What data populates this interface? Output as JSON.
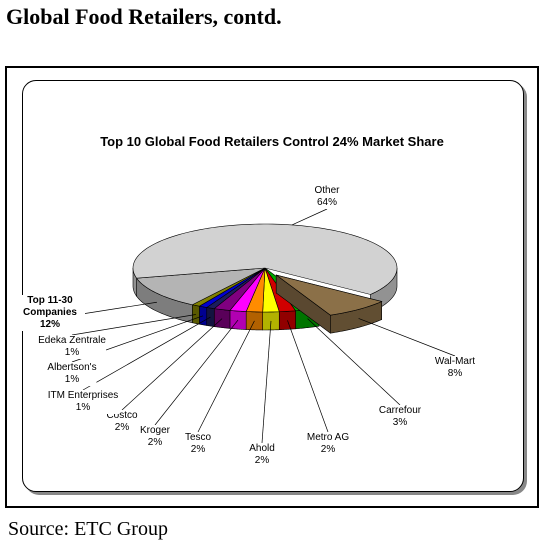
{
  "page_title": "Global Food Retailers, contd.",
  "source": "Source: ETC Group",
  "chart_data": {
    "type": "pie",
    "title": "Top 10 Global Food Retailers Control 24% Market Share",
    "categories": [
      "Wal-Mart",
      "Carrefour",
      "Metro AG",
      "Ahold",
      "Tesco",
      "Kroger",
      "Costco",
      "ITM Enterprises",
      "Albertson's",
      "Edeka Zentrale",
      "Top 11-30 Companies",
      "Other"
    ],
    "values": [
      8,
      3,
      2,
      2,
      2,
      2,
      2,
      1,
      1,
      1,
      12,
      64
    ],
    "value_labels": [
      "8%",
      "3%",
      "2%",
      "2%",
      "2%",
      "2%",
      "2%",
      "1%",
      "1%",
      "1%",
      "12%",
      "64%"
    ],
    "colors": [
      "#8b7048",
      "#00a800",
      "#d00000",
      "#ffff00",
      "#ff8c00",
      "#ff00ff",
      "#800080",
      "#1c1c5c",
      "#0000d0",
      "#808000",
      "#b4b4b4",
      "#d2d2d2"
    ],
    "exploded": [
      "Wal-Mart"
    ]
  }
}
